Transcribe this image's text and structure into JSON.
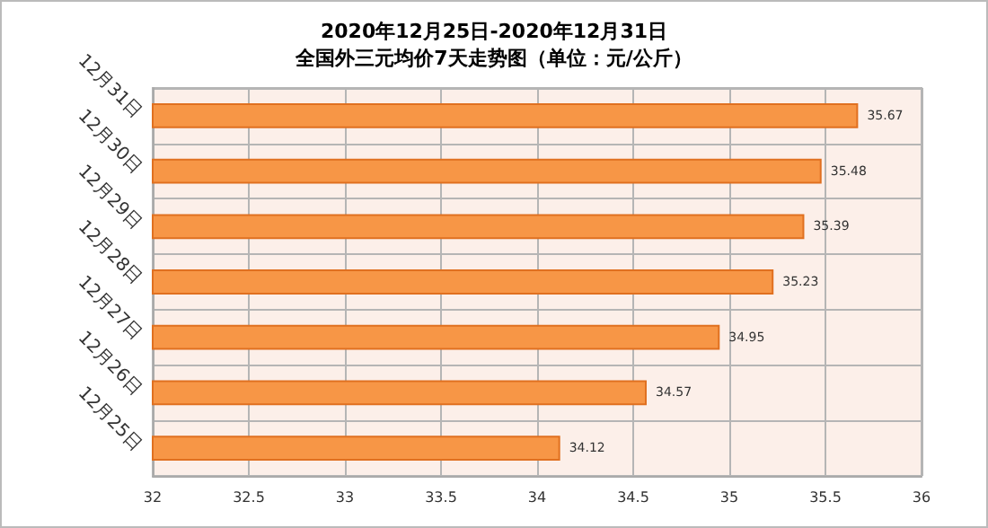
{
  "chart_data": {
    "type": "bar",
    "orientation": "horizontal",
    "title": "2020年12月25日-2020年12月31日",
    "subtitle": "全国外三元均价7天走势图（单位：元/公斤）",
    "categories": [
      "12月31日",
      "12月30日",
      "12月29日",
      "12月28日",
      "12月27日",
      "12月26日",
      "12月25日"
    ],
    "values": [
      35.67,
      35.48,
      35.39,
      35.23,
      34.95,
      34.57,
      34.12
    ],
    "color": "#f79646",
    "xlim": [
      32,
      36
    ],
    "xticks": [
      32,
      32.5,
      33,
      33.5,
      34,
      34.5,
      35,
      35.5,
      36
    ],
    "grid": true,
    "data_labels": true
  }
}
